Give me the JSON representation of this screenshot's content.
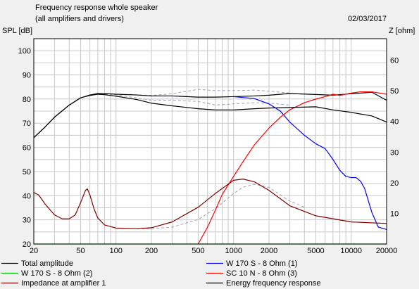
{
  "header": {
    "title": "Frequency response whole speaker",
    "subtitle": "(all amplifiers and drivers)",
    "date": "02/03/2017"
  },
  "chart_data": {
    "type": "line",
    "title": "Frequency response whole speaker",
    "subtitle": "(all amplifiers and drivers)",
    "date": "02/03/2017",
    "x_scale": "log",
    "xlim": [
      20,
      20000
    ],
    "x_ticks": [
      20,
      50,
      100,
      200,
      500,
      1000,
      2000,
      5000,
      10000,
      20000
    ],
    "x_tick_labels": [
      "20",
      "50",
      "100",
      "200",
      "500",
      "1000",
      "2000",
      "5000",
      "10000",
      "20000"
    ],
    "y_left": {
      "label": "SPL [dB]",
      "lim": [
        20,
        105
      ],
      "ticks": [
        20,
        30,
        40,
        50,
        60,
        70,
        80,
        90,
        100
      ],
      "tick_labels": [
        "20",
        "30",
        "40",
        "50",
        "60",
        "70",
        "80",
        "90",
        "100"
      ]
    },
    "y_right": {
      "label": "Z [ohm]",
      "lim": [
        0,
        67
      ],
      "ticks": [
        10,
        20,
        30,
        40,
        50,
        60
      ],
      "tick_labels": [
        "10",
        "20",
        "30",
        "40",
        "50",
        "60"
      ]
    },
    "grid": true,
    "legend_position": "bottom",
    "colors": {
      "total": "#000000",
      "w170_1": "#0000ff",
      "w170_2": "#00c000",
      "sc10n": "#ff0000",
      "impedance": "#800000",
      "energy": "#000000",
      "dashed": "#a0a0b8"
    },
    "series": [
      {
        "name": "Total amplitude",
        "axis": "left",
        "color": "#000000",
        "x": [
          20,
          25,
          30,
          40,
          50,
          60,
          70,
          80,
          100,
          150,
          200,
          300,
          500,
          700,
          1000,
          1500,
          2000,
          3000,
          5000,
          7000,
          10000,
          15000,
          20000
        ],
        "y": [
          64,
          68.5,
          72.5,
          77.5,
          80.5,
          81.7,
          82.3,
          82.3,
          82,
          81.7,
          81.3,
          81.3,
          80.8,
          80.8,
          81,
          81.3,
          81.6,
          82.3,
          81.9,
          81.6,
          82.2,
          82.8,
          79.5
        ]
      },
      {
        "name": "W 170 S - 8 Ohm (1)",
        "axis": "left",
        "color": "#0000ff",
        "x": [
          1000,
          1500,
          2000,
          2500,
          3000,
          4000,
          5000,
          6000,
          7000,
          8000,
          9000,
          10000,
          11000,
          12000,
          13000,
          15000,
          17000,
          20000
        ],
        "y": [
          81,
          80.2,
          78,
          75,
          70.5,
          65,
          61.5,
          59.5,
          55,
          50.5,
          48,
          47.5,
          47.5,
          46,
          43,
          33,
          27,
          26
        ]
      },
      {
        "name": "W 170 S - 8 Ohm (2)",
        "axis": "left",
        "color": "#00c000",
        "x": [
          20,
          20000
        ],
        "y": [
          20,
          20
        ]
      },
      {
        "name": "SC 10 N - 8 Ohm (3)",
        "axis": "left",
        "color": "#ff0000",
        "x": [
          500,
          600,
          700,
          800,
          1000,
          1200,
          1500,
          2000,
          2500,
          3000,
          4000,
          5000,
          6000,
          7000,
          8000,
          10000,
          12000,
          15000,
          20000
        ],
        "y": [
          20,
          27,
          34,
          40.5,
          48,
          54,
          61,
          68,
          72.5,
          75.5,
          78.5,
          80,
          81,
          82,
          81.5,
          82.5,
          83,
          83,
          82
        ]
      },
      {
        "name": "Impedance at amplifier 1",
        "axis": "right",
        "color": "#800000",
        "x": [
          20,
          22,
          25,
          30,
          35,
          40,
          45,
          50,
          55,
          57,
          60,
          65,
          70,
          80,
          100,
          150,
          200,
          300,
          500,
          700,
          1000,
          1200,
          1500,
          2000,
          3000,
          5000,
          10000,
          20000
        ],
        "y": [
          16.8,
          16,
          13,
          9.5,
          8.2,
          8.2,
          9.5,
          13.5,
          17.5,
          18,
          16,
          11.5,
          8.5,
          6.2,
          5.2,
          5,
          5.3,
          7.2,
          12,
          16.5,
          20.8,
          21.2,
          20.3,
          17.5,
          12.5,
          9.2,
          7.2,
          6.7
        ]
      },
      {
        "name": "Energy frequency response",
        "axis": "left",
        "color": "#000000",
        "x": [
          20,
          25,
          30,
          40,
          50,
          60,
          70,
          80,
          100,
          150,
          200,
          300,
          500,
          700,
          1000,
          1500,
          2000,
          3000,
          5000,
          7000,
          10000,
          15000,
          20000
        ],
        "y": [
          64,
          68.5,
          72.5,
          77.5,
          80.5,
          81.5,
          82,
          81.8,
          81.2,
          79.8,
          78.3,
          77.2,
          76,
          75.5,
          75.5,
          76,
          76.3,
          76.5,
          76.8,
          75.5,
          74.5,
          73,
          70.5
        ]
      },
      {
        "name": "",
        "axis": "left",
        "color": "#a0a0b8",
        "dashed": true,
        "x": [
          80,
          100,
          150,
          200,
          300,
          500,
          700,
          1000,
          1500,
          2000,
          3000
        ],
        "y": [
          82,
          82,
          81.8,
          81.5,
          82.2,
          84,
          83.5,
          83.5,
          83.7,
          83.3,
          82.5
        ]
      },
      {
        "name": "",
        "axis": "left",
        "color": "#a0a0b8",
        "dashed": true,
        "x": [
          80,
          100,
          150,
          200,
          300,
          500,
          700,
          1000,
          1500,
          2000,
          3000
        ],
        "y": [
          82,
          81.8,
          80.5,
          79.5,
          79.5,
          79,
          77.5,
          78,
          78.5,
          78.3,
          77.5
        ]
      },
      {
        "name": "",
        "axis": "right",
        "color": "#a0a0b8",
        "dashed": true,
        "x": [
          150,
          200,
          300,
          500,
          700,
          1000,
          1200,
          1500,
          2000,
          2500,
          3000,
          4000
        ],
        "y": [
          5,
          5,
          5.5,
          8,
          11.5,
          16.5,
          18.5,
          19.5,
          18.5,
          16,
          14,
          12
        ]
      }
    ]
  },
  "legend": [
    {
      "label": "Total amplitude",
      "color": "#000000"
    },
    {
      "label": "W 170 S - 8 Ohm (1)",
      "color": "#0000ff"
    },
    {
      "label": "W 170 S - 8 Ohm (2)",
      "color": "#00c000"
    },
    {
      "label": "SC 10 N - 8 Ohm (3)",
      "color": "#ff0000"
    },
    {
      "label": "Impedance at amplifier 1",
      "color": "#800000"
    },
    {
      "label": "Energy frequency response",
      "color": "#000000"
    }
  ]
}
